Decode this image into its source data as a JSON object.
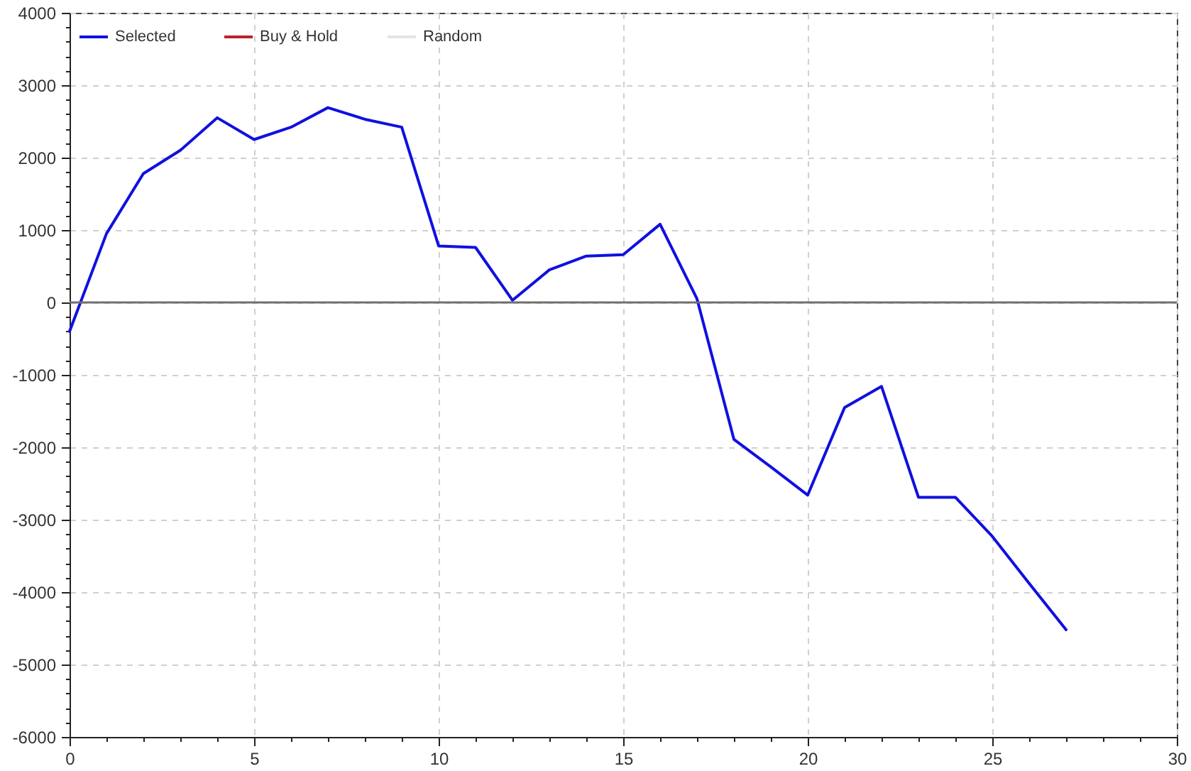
{
  "chart_data": {
    "type": "line",
    "x": [
      0,
      1,
      2,
      3,
      4,
      5,
      6,
      7,
      8,
      9,
      10,
      11,
      12,
      13,
      14,
      15,
      16,
      17,
      18,
      19,
      20,
      21,
      22,
      23,
      24,
      25,
      26,
      27
    ],
    "series": [
      {
        "name": "Selected",
        "color": "#1010e0",
        "values": [
          -400,
          950,
          1780,
          2100,
          2550,
          2250,
          2420,
          2690,
          2530,
          2420,
          780,
          760,
          30,
          450,
          640,
          660,
          1080,
          50,
          -1890,
          -2270,
          -2660,
          -1450,
          -1160,
          -2690,
          -2690,
          -3230,
          -3880,
          -4520
        ]
      },
      {
        "name": "Buy & Hold",
        "color": "#c0202a",
        "values": [
          null,
          null,
          null,
          null,
          null,
          null,
          null,
          null,
          null,
          null,
          null,
          null,
          null,
          null,
          null,
          null,
          null,
          null,
          null,
          null,
          null,
          null,
          null,
          null,
          null,
          null,
          null,
          null
        ]
      },
      {
        "name": "Random",
        "color": "#e4e4e4",
        "values": [
          null,
          null,
          null,
          null,
          null,
          null,
          null,
          null,
          null,
          null,
          null,
          null,
          null,
          null,
          null,
          null,
          null,
          null,
          null,
          null,
          null,
          null,
          null,
          null,
          null,
          null,
          null,
          null
        ]
      }
    ],
    "xlim": [
      0,
      30
    ],
    "xticks": [
      0,
      {
        "value": 1,
        "label": null
      },
      {
        "value": 2,
        "label": null
      },
      {
        "value": 3,
        "label": null
      },
      {
        "value": 4,
        "label": null
      },
      5,
      {
        "value": 6,
        "label": null
      },
      {
        "value": 7,
        "label": null
      },
      {
        "value": 8,
        "label": null
      },
      {
        "value": 9,
        "label": null
      },
      10,
      {
        "value": 11,
        "label": null
      },
      {
        "value": 12,
        "label": null
      },
      {
        "value": 13,
        "label": null
      },
      {
        "value": 14,
        "label": null
      },
      15,
      {
        "value": 16,
        "label": null
      },
      {
        "value": 17,
        "label": null
      },
      {
        "value": 18,
        "label": null
      },
      {
        "value": 19,
        "label": null
      },
      20,
      {
        "value": 21,
        "label": null
      },
      {
        "value": 22,
        "label": null
      },
      {
        "value": 23,
        "label": null
      },
      {
        "value": 24,
        "label": null
      },
      25,
      {
        "value": 26,
        "label": null
      },
      {
        "value": 27,
        "label": null
      },
      {
        "value": 28,
        "label": null
      },
      {
        "value": 29,
        "label": null
      },
      30
    ],
    "ylim": [
      -6000,
      4000
    ],
    "yticks": [
      -6000,
      {
        "value": -5800,
        "label": null
      },
      {
        "value": -5600,
        "label": null
      },
      {
        "value": -5400,
        "label": null
      },
      {
        "value": -5200,
        "label": null
      },
      -5000,
      {
        "value": -4800,
        "label": null
      },
      {
        "value": -4600,
        "label": null
      },
      {
        "value": -4400,
        "label": null
      },
      {
        "value": -4200,
        "label": null
      },
      -4000,
      {
        "value": -3800,
        "label": null
      },
      {
        "value": -3600,
        "label": null
      },
      {
        "value": -3400,
        "label": null
      },
      {
        "value": -3200,
        "label": null
      },
      -3000,
      {
        "value": -2800,
        "label": null
      },
      {
        "value": -2600,
        "label": null
      },
      {
        "value": -2400,
        "label": null
      },
      {
        "value": -2200,
        "label": null
      },
      -2000,
      {
        "value": -1800,
        "label": null
      },
      {
        "value": -1600,
        "label": null
      },
      {
        "value": -1400,
        "label": null
      },
      {
        "value": -1200,
        "label": null
      },
      -1000,
      {
        "value": -800,
        "label": null
      },
      {
        "value": -600,
        "label": null
      },
      {
        "value": -400,
        "label": null
      },
      {
        "value": -200,
        "label": null
      },
      0,
      {
        "value": 200,
        "label": null
      },
      {
        "value": 400,
        "label": null
      },
      {
        "value": 600,
        "label": null
      },
      {
        "value": 800,
        "label": null
      },
      1000,
      {
        "value": 1200,
        "label": null
      },
      {
        "value": 1400,
        "label": null
      },
      {
        "value": 1600,
        "label": null
      },
      {
        "value": 1800,
        "label": null
      },
      2000,
      {
        "value": 2200,
        "label": null
      },
      {
        "value": 2400,
        "label": null
      },
      {
        "value": 2600,
        "label": null
      },
      {
        "value": 2800,
        "label": null
      },
      3000,
      {
        "value": 3200,
        "label": null
      },
      {
        "value": 3400,
        "label": null
      },
      {
        "value": 3600,
        "label": null
      },
      {
        "value": 3800,
        "label": null
      },
      4000
    ],
    "ref_lines": [
      {
        "axis": "y",
        "value": 0,
        "color": "#707070"
      }
    ],
    "grid": true,
    "legend": "top left",
    "marker": "none",
    "line_style": "solid"
  }
}
